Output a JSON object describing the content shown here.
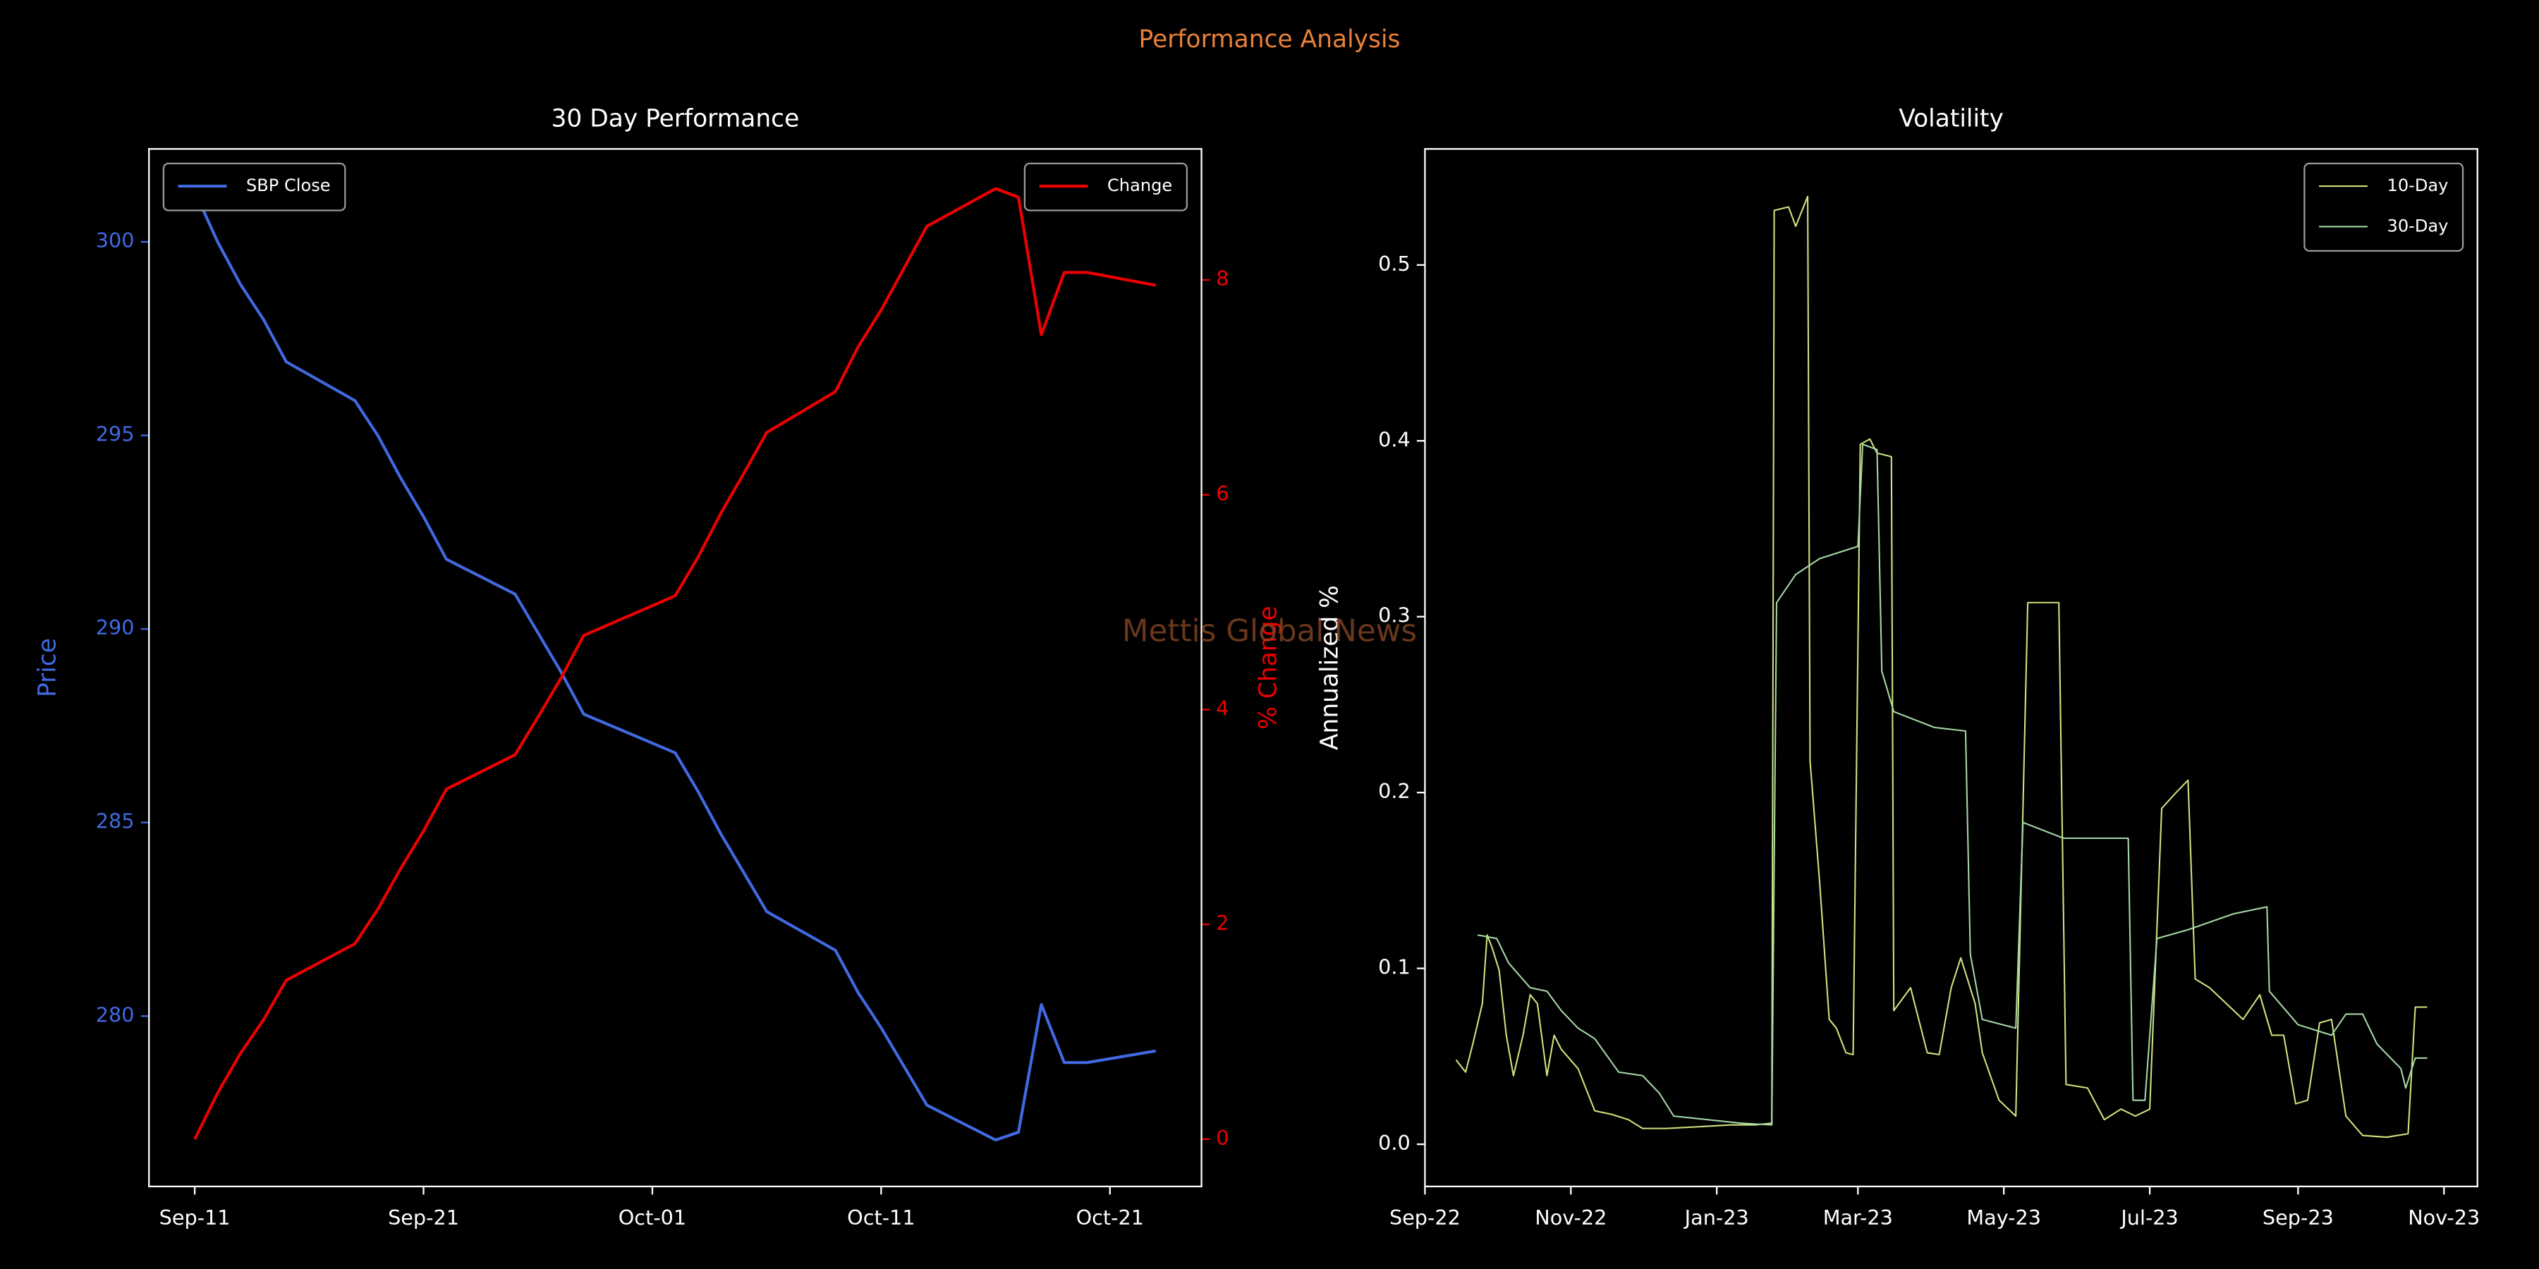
{
  "title": "Performance Analysis",
  "watermark": "Mettis Global News",
  "chart_data": [
    {
      "type": "line",
      "title": "30 Day Performance",
      "x": [
        "Sep-11",
        "Sep-12",
        "Sep-13",
        "Sep-14",
        "Sep-15",
        "Sep-18",
        "Sep-19",
        "Sep-20",
        "Sep-21",
        "Sep-22",
        "Sep-25",
        "Sep-26",
        "Sep-27",
        "Sep-28",
        "Oct-02",
        "Oct-03",
        "Oct-04",
        "Oct-05",
        "Oct-06",
        "Oct-09",
        "Oct-10",
        "Oct-11",
        "Oct-13",
        "Oct-16",
        "Oct-17",
        "Oct-18",
        "Oct-19",
        "Oct-20",
        "Oct-23"
      ],
      "series": [
        {
          "name": "SBP Close",
          "color": "#4169e1",
          "values": [
            301.3,
            300.0,
            298.9,
            298.0,
            296.9,
            295.9,
            295.0,
            293.9,
            292.9,
            291.8,
            290.9,
            289.9,
            288.9,
            287.8,
            286.8,
            285.8,
            284.7,
            283.7,
            282.7,
            281.7,
            280.6,
            279.7,
            277.7,
            276.8,
            277.0,
            280.3,
            278.8,
            278.8,
            279.1
          ]
        },
        {
          "name": "Change",
          "color": "#ee0000",
          "axis": "y2",
          "values": [
            0,
            0.43,
            0.8,
            1.11,
            1.48,
            1.82,
            2.14,
            2.52,
            2.87,
            3.26,
            3.58,
            3.93,
            4.29,
            4.69,
            5.06,
            5.42,
            5.83,
            6.2,
            6.58,
            6.96,
            7.38,
            7.72,
            8.5,
            8.85,
            8.77,
            7.49,
            8.07,
            8.07,
            7.95
          ]
        }
      ],
      "ylabel": "Price",
      "y2label": "% Change",
      "ycolor": "#4169e1",
      "y2color": "#ee0000",
      "xlim": [
        "Sep-09",
        "Oct-25"
      ],
      "xticks": [
        "Sep-11",
        "Sep-21",
        "Oct-01",
        "Oct-11",
        "Oct-21"
      ],
      "ylim": [
        275.6,
        302.4
      ],
      "yticks": [
        280,
        285,
        290,
        295,
        300
      ],
      "y2lim": [
        -0.44,
        9.22
      ],
      "y2ticks": [
        0,
        2,
        4,
        6,
        8
      ],
      "legend": {
        "y": "upper left",
        "y2": "upper right"
      }
    },
    {
      "type": "line",
      "title": "Volatility",
      "series": [
        {
          "name": "10-Day",
          "color": "#d0e47c",
          "x": [
            "2022-09-14",
            "2022-09-18",
            "2022-09-21",
            "2022-09-25",
            "2022-09-27",
            "2022-09-29",
            "2022-10-02",
            "2022-10-05",
            "2022-10-08",
            "2022-10-12",
            "2022-10-15",
            "2022-10-18",
            "2022-10-22",
            "2022-10-25",
            "2022-10-28",
            "2022-11-04",
            "2022-11-11",
            "2022-11-18",
            "2022-11-25",
            "2022-12-01",
            "2022-12-11",
            "2022-12-25",
            "2023-01-07",
            "2023-01-17",
            "2023-01-24",
            "2023-01-25",
            "2023-01-31",
            "2023-02-03",
            "2023-02-08",
            "2023-02-09",
            "2023-02-13",
            "2023-02-17",
            "2023-02-20",
            "2023-02-24",
            "2023-02-27",
            "2023-03-02",
            "2023-03-06",
            "2023-03-09",
            "2023-03-15",
            "2023-03-16",
            "2023-03-23",
            "2023-03-30",
            "2023-04-04",
            "2023-04-09",
            "2023-04-13",
            "2023-04-19",
            "2023-04-22",
            "2023-04-29",
            "2023-05-06",
            "2023-05-11",
            "2023-05-17",
            "2023-05-24",
            "2023-05-27",
            "2023-06-05",
            "2023-06-12",
            "2023-06-19",
            "2023-06-25",
            "2023-07-01",
            "2023-07-06",
            "2023-07-12",
            "2023-07-17",
            "2023-07-20",
            "2023-07-26",
            "2023-08-02",
            "2023-08-09",
            "2023-08-16",
            "2023-08-21",
            "2023-08-26",
            "2023-08-31",
            "2023-09-05",
            "2023-09-10",
            "2023-09-15",
            "2023-09-21",
            "2023-09-28",
            "2023-10-08",
            "2023-10-17",
            "2023-10-20",
            "2023-10-25"
          ],
          "values": [
            0.048,
            0.041,
            0.057,
            0.08,
            0.119,
            0.112,
            0.099,
            0.062,
            0.039,
            0.062,
            0.085,
            0.08,
            0.039,
            0.062,
            0.054,
            0.043,
            0.019,
            0.017,
            0.014,
            0.009,
            0.009,
            0.01,
            0.011,
            0.011,
            0.012,
            0.531,
            0.533,
            0.522,
            0.539,
            0.218,
            0.149,
            0.071,
            0.066,
            0.052,
            0.051,
            0.398,
            0.401,
            0.393,
            0.391,
            0.076,
            0.089,
            0.052,
            0.051,
            0.089,
            0.106,
            0.08,
            0.052,
            0.025,
            0.016,
            0.308,
            0.308,
            0.308,
            0.034,
            0.032,
            0.014,
            0.02,
            0.016,
            0.02,
            0.191,
            0.2,
            0.207,
            0.094,
            0.089,
            0.08,
            0.071,
            0.085,
            0.062,
            0.062,
            0.023,
            0.025,
            0.069,
            0.071,
            0.016,
            0.005,
            0.004,
            0.006,
            0.078,
            0.078
          ]
        },
        {
          "name": "30-Day",
          "color": "#a6d8a6",
          "x": [
            "2022-09-23",
            "2022-10-01",
            "2022-10-06",
            "2022-10-15",
            "2022-10-22",
            "2022-10-28",
            "2022-11-04",
            "2022-11-11",
            "2022-11-21",
            "2022-12-01",
            "2022-12-08",
            "2022-12-14",
            "2022-12-28",
            "2023-01-11",
            "2023-01-24",
            "2023-01-26",
            "2023-02-03",
            "2023-02-13",
            "2023-03-01",
            "2023-03-03",
            "2023-03-09",
            "2023-03-11",
            "2023-03-16",
            "2023-04-02",
            "2023-04-15",
            "2023-04-17",
            "2023-04-22",
            "2023-05-06",
            "2023-05-09",
            "2023-05-26",
            "2023-06-22",
            "2023-06-24",
            "2023-06-29",
            "2023-07-04",
            "2023-07-17",
            "2023-08-05",
            "2023-08-19",
            "2023-08-20",
            "2023-09-01",
            "2023-09-15",
            "2023-09-21",
            "2023-09-28",
            "2023-10-04",
            "2023-10-14",
            "2023-10-16",
            "2023-10-20",
            "2023-10-25"
          ],
          "values": [
            0.119,
            0.117,
            0.103,
            0.089,
            0.087,
            0.076,
            0.066,
            0.06,
            0.041,
            0.039,
            0.029,
            0.016,
            0.014,
            0.012,
            0.011,
            0.308,
            0.324,
            0.333,
            0.34,
            0.398,
            0.395,
            0.269,
            0.246,
            0.237,
            0.235,
            0.108,
            0.071,
            0.066,
            0.183,
            0.174,
            0.174,
            0.025,
            0.025,
            0.117,
            0.122,
            0.131,
            0.135,
            0.087,
            0.068,
            0.062,
            0.074,
            0.074,
            0.057,
            0.043,
            0.032,
            0.049,
            0.049
          ]
        }
      ],
      "ylabel": "Annualized %",
      "xlim": [
        "2022-09-01",
        "2023-11-15"
      ],
      "xticks": [
        {
          "value": "2022-09-01",
          "label": "Sep-22"
        },
        {
          "value": "2022-11-01",
          "label": "Nov-22"
        },
        {
          "value": "2023-01-01",
          "label": "Jan-23"
        },
        {
          "value": "2023-03-01",
          "label": "Mar-23"
        },
        {
          "value": "2023-05-01",
          "label": "May-23"
        },
        {
          "value": "2023-07-01",
          "label": "Jul-23"
        },
        {
          "value": "2023-09-01",
          "label": "Sep-23"
        },
        {
          "value": "2023-11-01",
          "label": "Nov-23"
        }
      ],
      "ylim": [
        -0.024,
        0.566
      ],
      "yticks": [
        {
          "value": 0,
          "label": "0.0"
        },
        0.1,
        0.2,
        0.3,
        0.4,
        0.5
      ],
      "legend": "upper right"
    }
  ]
}
